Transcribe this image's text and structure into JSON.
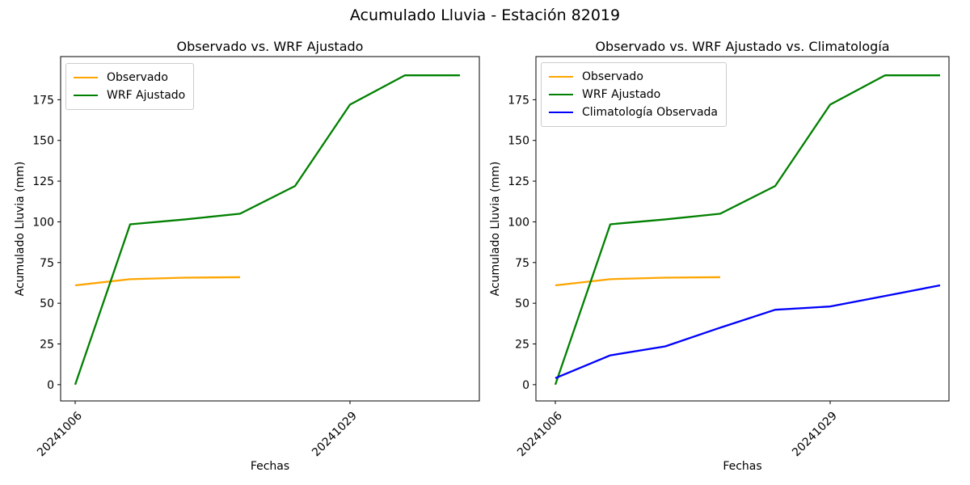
{
  "figure": {
    "title": "Acumulado Lluvia - Estación 82019",
    "background": "#ffffff"
  },
  "colors": {
    "axis": "#000000",
    "text": "#000000",
    "legend_border": "#cccccc",
    "observado": "#FFA500",
    "wrf_ajustado": "#008000",
    "climatologia": "#0000FF"
  },
  "chart_data": [
    {
      "type": "line",
      "title": "Observado vs. WRF Ajustado",
      "xlabel": "Fechas",
      "ylabel": "Acumulado Lluvia (mm)",
      "grid": false,
      "legend_position": "upper left",
      "n_points": 8,
      "yticks": [
        0,
        25,
        50,
        75,
        100,
        125,
        150,
        175
      ],
      "ylim": [
        -10,
        201.5
      ],
      "xticks": [
        {
          "index": 0,
          "label": "20241006"
        },
        {
          "index": 5,
          "label": "20241029"
        }
      ],
      "xtick_rotation": 45,
      "series": [
        {
          "name": "Observado",
          "color": "#FFA500",
          "values": [
            61,
            64.8,
            65.7,
            66
          ]
        },
        {
          "name": "WRF Ajustado",
          "color": "#008000",
          "values": [
            0,
            98.5,
            101.5,
            105,
            122,
            172,
            190,
            190
          ]
        }
      ]
    },
    {
      "type": "line",
      "title": "Observado vs. WRF Ajustado vs. Climatología",
      "xlabel": "Fechas",
      "ylabel": "Acumulado Lluvia (mm)",
      "grid": false,
      "legend_position": "upper left",
      "n_points": 8,
      "yticks": [
        0,
        25,
        50,
        75,
        100,
        125,
        150,
        175
      ],
      "ylim": [
        -10,
        201.5
      ],
      "xticks": [
        {
          "index": 0,
          "label": "20241006"
        },
        {
          "index": 5,
          "label": "20241029"
        }
      ],
      "xtick_rotation": 45,
      "series": [
        {
          "name": "Observado",
          "color": "#FFA500",
          "values": [
            61,
            64.8,
            65.7,
            66
          ]
        },
        {
          "name": "WRF Ajustado",
          "color": "#008000",
          "values": [
            0,
            98.5,
            101.5,
            105,
            122,
            172,
            190,
            190
          ]
        },
        {
          "name": "Climatología Observada",
          "color": "#0000FF",
          "values": [
            4,
            18,
            23.5,
            35,
            46,
            48,
            54.5,
            61
          ]
        }
      ]
    }
  ]
}
